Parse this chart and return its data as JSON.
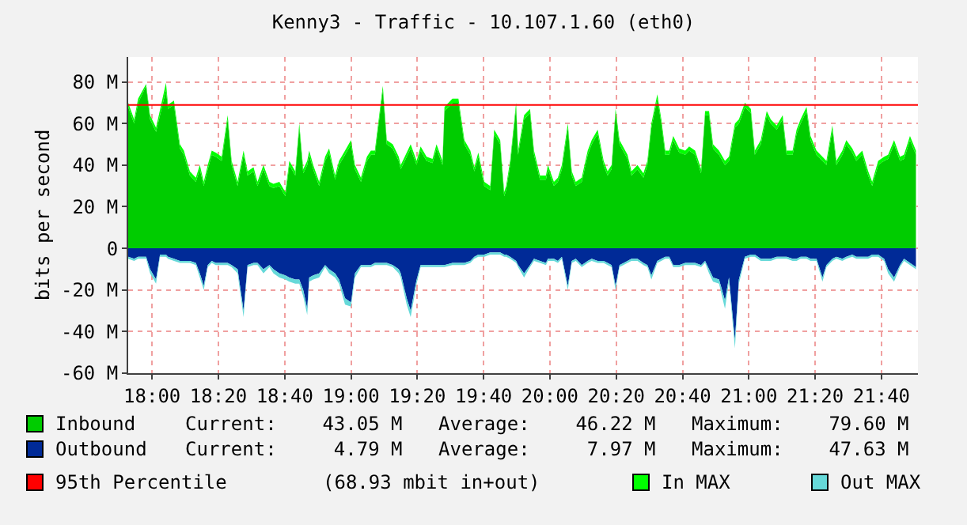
{
  "chart_data": {
    "type": "area",
    "title": "Kenny3 - Traffic - 10.107.1.60 (eth0)",
    "ylabel": "bits per second",
    "x": [
      17.88,
      17.91,
      17.93,
      17.97,
      17.99,
      18.02,
      18.04,
      18.07,
      18.08,
      18.11,
      18.14,
      18.16,
      18.19,
      18.22,
      18.24,
      18.26,
      18.28,
      18.3,
      18.32,
      18.35,
      18.38,
      18.4,
      18.43,
      18.46,
      18.48,
      18.51,
      18.53,
      18.56,
      18.59,
      18.61,
      18.64,
      18.67,
      18.69,
      18.72,
      18.74,
      18.76,
      18.78,
      18.79,
      18.81,
      18.84,
      18.87,
      18.89,
      18.92,
      18.94,
      18.97,
      19.0,
      19.02,
      19.05,
      19.08,
      19.1,
      19.12,
      19.14,
      19.16,
      19.18,
      19.21,
      19.24,
      19.25,
      19.28,
      19.3,
      19.33,
      19.35,
      19.38,
      19.41,
      19.43,
      19.46,
      19.47,
      19.51,
      19.54,
      19.57,
      19.6,
      19.62,
      19.64,
      19.67,
      19.7,
      19.72,
      19.75,
      19.77,
      19.78,
      19.8,
      19.83,
      19.84,
      19.87,
      19.9,
      19.92,
      19.95,
      19.98,
      19.99,
      20.02,
      20.04,
      20.06,
      20.09,
      20.11,
      20.13,
      20.16,
      20.19,
      20.21,
      20.24,
      20.27,
      20.29,
      20.31,
      20.33,
      20.35,
      20.39,
      20.41,
      20.44,
      20.47,
      20.49,
      20.51,
      20.54,
      20.56,
      20.58,
      20.6,
      20.62,
      20.65,
      20.68,
      20.7,
      20.73,
      20.76,
      20.78,
      20.8,
      20.82,
      20.85,
      20.88,
      20.9,
      20.93,
      20.95,
      20.98,
      21.01,
      21.03,
      21.06,
      21.09,
      21.11,
      21.14,
      21.17,
      21.19,
      21.22,
      21.24,
      21.26,
      21.29,
      21.31,
      21.34,
      21.37,
      21.39,
      21.42,
      21.44,
      21.47,
      21.49,
      21.52,
      21.54,
      21.57,
      21.6,
      21.62,
      21.65,
      21.68,
      21.7,
      21.73,
      21.76,
      21.78,
      21.81,
      21.84
    ],
    "series": [
      {
        "name": "Inbound",
        "color": "#00cc00",
        "values": [
          68,
          60,
          70,
          78,
          62,
          56,
          null,
          76,
          67,
          69,
          48,
          45,
          35,
          32,
          38,
          30,
          38,
          45,
          44,
          42,
          62,
          40,
          30,
          45,
          35,
          37,
          30,
          38,
          30,
          29,
          30,
          25,
          40,
          35,
          58,
          36,
          40,
          45,
          38,
          30,
          42,
          46,
          33,
          40,
          45,
          50,
          38,
          32,
          42,
          45,
          45,
          null,
          76,
          50,
          48,
          42,
          38,
          44,
          48,
          40,
          47,
          42,
          41,
          48,
          40,
          66,
          70,
          70,
          50,
          45,
          37,
          44,
          30,
          28,
          55,
          50,
          25,
          28,
          40,
          68,
          45,
          62,
          65,
          45,
          33,
          33,
          38,
          30,
          32,
          38,
          58,
          35,
          30,
          32,
          45,
          50,
          55,
          40,
          35,
          38,
          65,
          50,
          43,
          35,
          38,
          34,
          40,
          58,
          72,
          60,
          45,
          45,
          52,
          46,
          45,
          47,
          45,
          36,
          64,
          64,
          48,
          45,
          40,
          42,
          58,
          60,
          68,
          65,
          45,
          50,
          64,
          60,
          57,
          62,
          45,
          45,
          55,
          60,
          66,
          52,
          45,
          42,
          40,
          57,
          40,
          45,
          50,
          46,
          42,
          45,
          35,
          30,
          40,
          42,
          43,
          50,
          42,
          43,
          52,
          45
        ]
      },
      {
        "name": "In MAX",
        "color": "#00ff00",
        "values": [
          70,
          62,
          72,
          79,
          64,
          58,
          null,
          79.6,
          69,
          71,
          50,
          47,
          37,
          34,
          40,
          32,
          40,
          47,
          46,
          44,
          64,
          42,
          32,
          47,
          37,
          39,
          32,
          40,
          32,
          31,
          32,
          27,
          42,
          37,
          60,
          38,
          42,
          47,
          40,
          32,
          44,
          48,
          35,
          42,
          47,
          52,
          40,
          34,
          44,
          47,
          47,
          null,
          78,
          52,
          50,
          44,
          40,
          46,
          50,
          42,
          49,
          44,
          43,
          50,
          42,
          68,
          72,
          72,
          52,
          47,
          39,
          46,
          32,
          30,
          57,
          52,
          27,
          30,
          42,
          70,
          47,
          64,
          67,
          47,
          35,
          35,
          40,
          32,
          34,
          40,
          60,
          37,
          32,
          34,
          47,
          52,
          57,
          42,
          37,
          40,
          67,
          52,
          45,
          37,
          40,
          36,
          42,
          60,
          74,
          62,
          47,
          47,
          54,
          48,
          47,
          49,
          47,
          38,
          66,
          66,
          50,
          47,
          42,
          44,
          60,
          62,
          70,
          67,
          47,
          52,
          66,
          62,
          59,
          64,
          47,
          47,
          57,
          62,
          68,
          54,
          47,
          44,
          42,
          59,
          42,
          47,
          52,
          48,
          44,
          47,
          37,
          32,
          42,
          44,
          45,
          52,
          44,
          45,
          54,
          47
        ]
      },
      {
        "name": "Outbound",
        "color": "#002a97",
        "values": [
          -4,
          -5,
          -4,
          -4,
          -10,
          -15,
          -3,
          -3,
          -4,
          -5,
          -6,
          -6,
          -6,
          -7,
          -12,
          -18,
          -8,
          -6,
          -7,
          -7,
          -7,
          -8,
          -10,
          -30,
          -8,
          -7,
          -7,
          -10,
          -8,
          -10,
          -12,
          -13,
          -14,
          -15,
          -15,
          -20,
          -29,
          -14,
          -13,
          -12,
          -8,
          -10,
          -12,
          -15,
          -24,
          -26,
          -12,
          -8,
          -8,
          -8,
          -7,
          -7,
          -7,
          -7,
          -8,
          -10,
          -12,
          -24,
          -30,
          -15,
          -8,
          -8,
          -8,
          -8,
          -8,
          -8,
          -7,
          -7,
          -7,
          -6,
          -4,
          -3,
          -3,
          -2,
          -2,
          -2,
          -3,
          -3,
          -4,
          -6,
          -8,
          -12,
          -8,
          -5,
          -6,
          -7,
          -5,
          -5,
          -6,
          -4,
          -18,
          -6,
          -5,
          -8,
          -6,
          -5,
          -6,
          -6,
          -7,
          -8,
          -18,
          -8,
          -6,
          -5,
          -5,
          -7,
          -8,
          -13,
          -6,
          -5,
          -4,
          -4,
          -8,
          -8,
          -7,
          -7,
          -7,
          -8,
          -6,
          -10,
          -14,
          -15,
          -25,
          -14,
          -44,
          -15,
          -4,
          -3,
          -3,
          -5,
          -5,
          -5,
          -4,
          -4,
          -4,
          -5,
          -5,
          -4,
          -4,
          -5,
          -5,
          -14,
          -8,
          -5,
          -4,
          -5,
          -4,
          -3,
          -4,
          -4,
          -4,
          -3,
          -3,
          -5,
          -10,
          -14,
          -8,
          -5,
          -7,
          -9
        ]
      },
      {
        "name": "Out MAX",
        "color": "#66d9d9",
        "values": [
          -5,
          -6,
          -5,
          -5,
          -12,
          -17,
          -4,
          -4,
          -5,
          -6,
          -7,
          -7,
          -7,
          -8,
          -14,
          -20,
          -9,
          -7,
          -8,
          -8,
          -8,
          -9,
          -12,
          -33,
          -9,
          -8,
          -8,
          -12,
          -9,
          -12,
          -14,
          -15,
          -16,
          -17,
          -17,
          -23,
          -32,
          -16,
          -15,
          -14,
          -9,
          -12,
          -14,
          -17,
          -27,
          -28,
          -14,
          -9,
          -9,
          -9,
          -8,
          -8,
          -8,
          -8,
          -9,
          -12,
          -14,
          -27,
          -33,
          -17,
          -9,
          -9,
          -9,
          -9,
          -9,
          -9,
          -8,
          -8,
          -8,
          -7,
          -5,
          -4,
          -4,
          -3,
          -3,
          -3,
          -4,
          -4,
          -5,
          -7,
          -9,
          -14,
          -9,
          -6,
          -7,
          -8,
          -6,
          -6,
          -7,
          -5,
          -20,
          -7,
          -6,
          -9,
          -7,
          -6,
          -7,
          -7,
          -8,
          -9,
          -20,
          -9,
          -7,
          -6,
          -6,
          -8,
          -9,
          -15,
          -7,
          -6,
          -5,
          -5,
          -9,
          -9,
          -8,
          -8,
          -8,
          -9,
          -7,
          -12,
          -16,
          -17,
          -29,
          -16,
          -48,
          -17,
          -5,
          -4,
          -4,
          -6,
          -6,
          -6,
          -5,
          -5,
          -5,
          -6,
          -6,
          -5,
          -5,
          -6,
          -6,
          -16,
          -9,
          -6,
          -5,
          -6,
          -5,
          -4,
          -5,
          -5,
          -5,
          -4,
          -4,
          -6,
          -12,
          -16,
          -9,
          -6,
          -8,
          -10
        ]
      }
    ],
    "xlim": [
      17.88,
      21.85
    ],
    "xticks": [
      {
        "value": 18,
        "label": "18:00"
      },
      {
        "value": 18.3333,
        "label": "18:20"
      },
      {
        "value": 18.6667,
        "label": "18:40"
      },
      {
        "value": 19,
        "label": "19:00"
      },
      {
        "value": 19.3333,
        "label": "19:20"
      },
      {
        "value": 19.6667,
        "label": "19:40"
      },
      {
        "value": 20,
        "label": "20:00"
      },
      {
        "value": 20.3333,
        "label": "20:20"
      },
      {
        "value": 20.6667,
        "label": "20:40"
      },
      {
        "value": 21,
        "label": "21:00"
      },
      {
        "value": 21.3333,
        "label": "21:20"
      },
      {
        "value": 21.6667,
        "label": "21:40"
      }
    ],
    "ylim": [
      -60,
      92
    ],
    "yticks": [
      {
        "value": -60,
        "label": "-60 M"
      },
      {
        "value": -40,
        "label": "-40 M"
      },
      {
        "value": -20,
        "label": "-20 M"
      },
      0,
      {
        "value": 20,
        "label": "20 M"
      },
      {
        "value": 40,
        "label": "40 M"
      },
      {
        "value": 60,
        "label": "60 M"
      },
      {
        "value": 80,
        "label": "80 M"
      }
    ],
    "ref_lines": [
      {
        "axis": "y",
        "value": 68.93,
        "label": "95th Percentile",
        "color": "#ff0000"
      }
    ],
    "annotations": [
      "Current:    43.05 M",
      "Average:    46.22 M",
      "Maximum:    79.60 M",
      "Current:     4.79 M",
      "Average:     7.97 M",
      "Maximum:    47.63 M",
      "(68.93 mbit in+out)"
    ],
    "grid": true,
    "legend": "bottom"
  }
}
